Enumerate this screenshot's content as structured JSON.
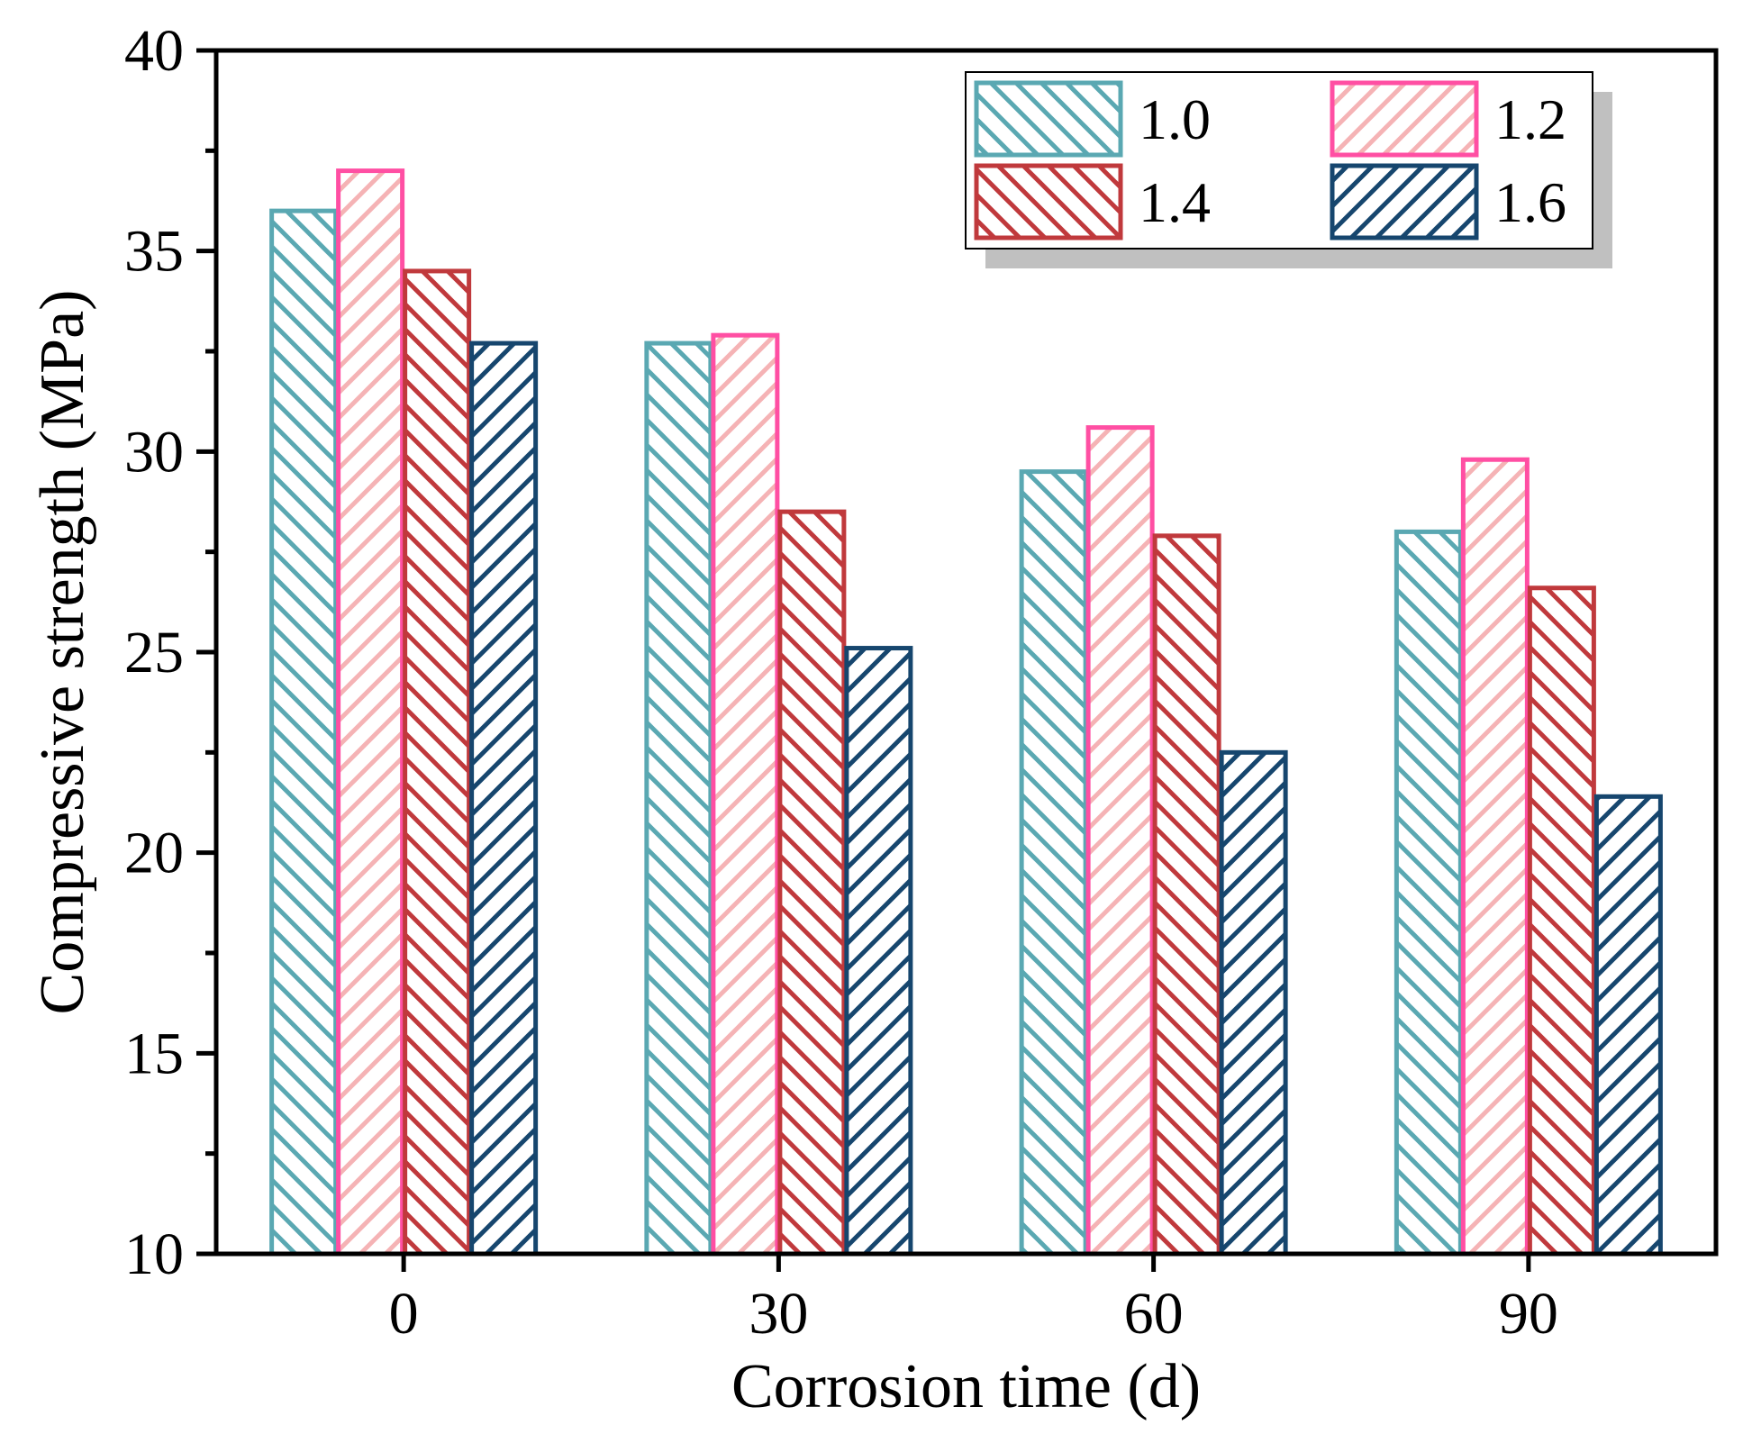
{
  "chart_data": {
    "type": "bar",
    "title": "",
    "xlabel": "Corrosion time (d)",
    "ylabel": "Compressive strength (MPa)",
    "categories": [
      "0",
      "30",
      "60",
      "90"
    ],
    "ylim": [
      10,
      40
    ],
    "yticks": [
      "10",
      "15",
      "20",
      "25",
      "30",
      "35",
      "40"
    ],
    "grid": false,
    "legend_position": "top-right",
    "series": [
      {
        "name": "1.0",
        "values": [
          36.0,
          32.7,
          29.5,
          28.0
        ],
        "color": "#5aa8b2",
        "hatch": "backslash"
      },
      {
        "name": "1.2",
        "values": [
          37.0,
          32.9,
          30.6,
          29.8
        ],
        "color": "#ff4fa3",
        "hatch_color": "#f5b3b5",
        "hatch": "slash"
      },
      {
        "name": "1.4",
        "values": [
          34.5,
          28.5,
          27.9,
          26.6
        ],
        "color": "#c0393c",
        "hatch": "backslash"
      },
      {
        "name": "1.6",
        "values": [
          32.7,
          25.1,
          22.5,
          21.4
        ],
        "color": "#16466e",
        "hatch": "slash"
      }
    ]
  }
}
